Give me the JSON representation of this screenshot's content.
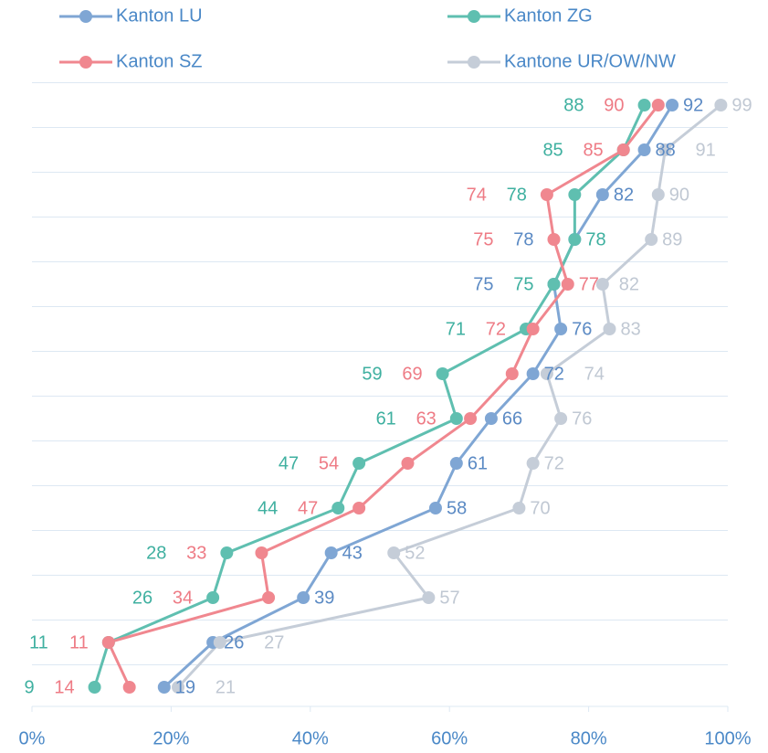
{
  "chart_data": {
    "type": "line",
    "orientation": "horizontal",
    "categories": [
      null,
      null,
      null,
      null,
      null,
      null,
      null,
      null,
      null,
      null,
      null,
      null,
      null,
      null
    ],
    "series": [
      {
        "name": "Kanton LU",
        "color": "#7fa6d4",
        "values": [
          92,
          88,
          82,
          78,
          75,
          76,
          72,
          66,
          61,
          58,
          43,
          39,
          26,
          19
        ]
      },
      {
        "name": "Kanton ZG",
        "color": "#5fbfb0",
        "values": [
          88,
          85,
          78,
          78,
          75,
          71,
          59,
          61,
          47,
          44,
          28,
          26,
          11,
          9
        ]
      },
      {
        "name": "Kanton SZ",
        "color": "#f0878f",
        "values": [
          90,
          85,
          74,
          75,
          77,
          72,
          69,
          63,
          54,
          47,
          33,
          34,
          11,
          14
        ]
      },
      {
        "name": "Kantone UR/OW/NW",
        "color": "#c5cdd8",
        "values": [
          99,
          91,
          90,
          89,
          82,
          83,
          74,
          76,
          72,
          70,
          52,
          57,
          27,
          21
        ]
      }
    ],
    "xlim": [
      0,
      100
    ],
    "xticks": [
      {
        "value": 0,
        "label": "0%"
      },
      {
        "value": 20,
        "label": "20%"
      },
      {
        "value": 40,
        "label": "40%"
      },
      {
        "value": 60,
        "label": "60%"
      },
      {
        "value": 80,
        "label": "80%"
      },
      {
        "value": 100,
        "label": "100%"
      }
    ],
    "grid": true
  }
}
